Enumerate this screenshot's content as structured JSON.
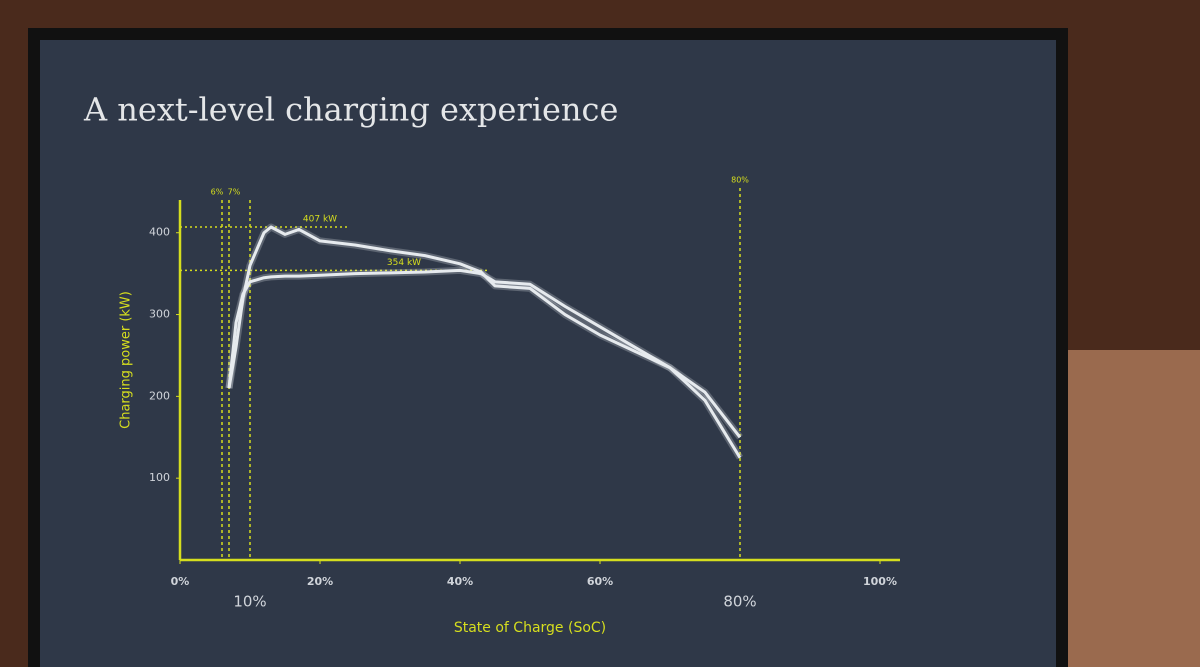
{
  "chart_data": {
    "type": "line",
    "title": "A next-level charging experience",
    "x_label": "State of Charge (SoC)",
    "y_label": "Charging power (kW)",
    "x": [
      7,
      8,
      9,
      10,
      12,
      13,
      15,
      17,
      20,
      25,
      30,
      35,
      40,
      43,
      45,
      50,
      55,
      60,
      65,
      70,
      75,
      80
    ],
    "series": [
      {
        "color": "#e6eaee",
        "values": [
          210,
          260,
          320,
          360,
          400,
          407,
          398,
          404,
          390,
          385,
          378,
          372,
          362,
          352,
          335,
          332,
          300,
          275,
          255,
          235,
          205,
          150
        ]
      },
      {
        "color": "#e6eaee",
        "values": [
          210,
          290,
          325,
          340,
          345,
          346,
          347,
          347,
          348,
          350,
          351,
          352,
          354,
          350,
          340,
          337,
          310,
          285,
          260,
          235,
          195,
          125
        ]
      }
    ],
    "xlim": [
      0,
      100
    ],
    "xticks": [
      {
        "value": 0,
        "label": "0%"
      },
      {
        "value": 20,
        "label": "20%"
      },
      {
        "value": 40,
        "label": "40%"
      },
      {
        "value": 60,
        "label": "60%"
      },
      {
        "value": 100,
        "label": "100%"
      }
    ],
    "ylim": [
      0,
      440
    ],
    "yticks": [
      100,
      200,
      300,
      400
    ],
    "vlines": [
      {
        "value": 6,
        "label": "6%"
      },
      {
        "value": 7,
        "label": "7%"
      },
      {
        "value": 10,
        "label": "10%"
      },
      {
        "value": 80,
        "label": "80%"
      }
    ],
    "hlines": [
      {
        "value": 407,
        "label": "407 kW"
      },
      {
        "value": 354,
        "label": "354 kW"
      }
    ],
    "accent": "#d6de1e"
  }
}
